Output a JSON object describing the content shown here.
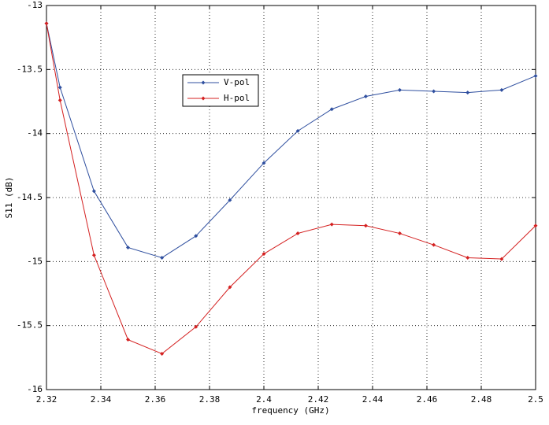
{
  "chart_data": {
    "type": "line",
    "x_label": "frequency (GHz)",
    "y_label": "S11 (dB)",
    "x": [
      2.32,
      2.325,
      2.3375,
      2.35,
      2.3625,
      2.375,
      2.3875,
      2.4,
      2.4125,
      2.425,
      2.4375,
      2.45,
      2.4625,
      2.475,
      2.4875,
      2.5
    ],
    "series": [
      {
        "name": "V-pol",
        "color": "#2f4f9f",
        "values": [
          -13.14,
          -13.64,
          -14.45,
          -14.89,
          -14.97,
          -14.8,
          -14.52,
          -14.23,
          -13.98,
          -13.81,
          -13.71,
          -13.66,
          -13.67,
          -13.68,
          -13.66,
          -13.55
        ]
      },
      {
        "name": "H-pol",
        "color": "#d42020",
        "values": [
          -13.14,
          -13.74,
          -14.95,
          -15.61,
          -15.72,
          -15.51,
          -15.2,
          -14.94,
          -14.78,
          -14.71,
          -14.72,
          -14.78,
          -14.87,
          -14.97,
          -14.98,
          -14.72
        ]
      }
    ],
    "xlim": [
      2.32,
      2.5
    ],
    "xticks": [
      2.32,
      2.34,
      2.36,
      2.38,
      2.4,
      2.42,
      2.44,
      2.46,
      2.48,
      2.5
    ],
    "ylim": [
      -16,
      -13
    ],
    "yticks": [
      -16,
      -15.5,
      -15,
      -14.5,
      -14,
      -13.5,
      -13
    ],
    "grid": true,
    "legend": "upper-left"
  }
}
